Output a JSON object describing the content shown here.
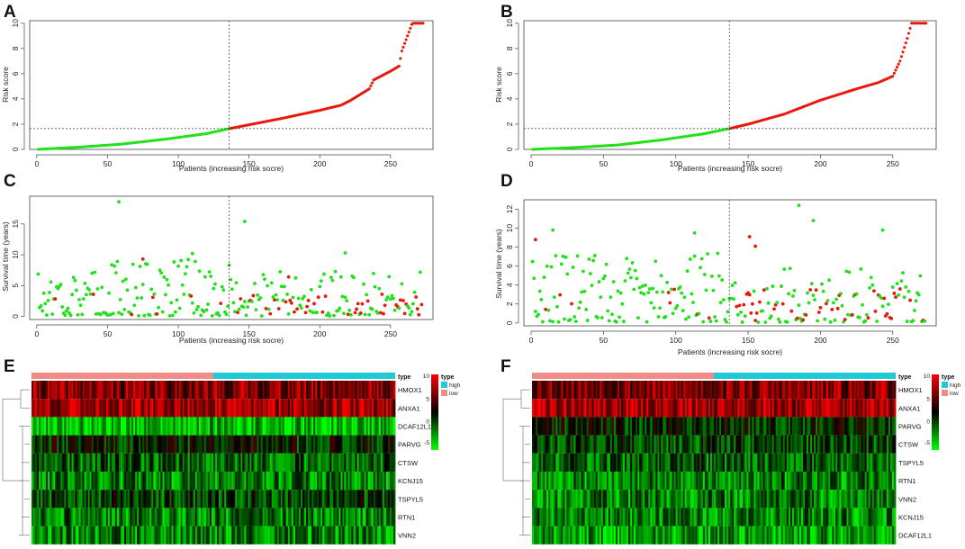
{
  "panels": {
    "A": {
      "letter": "A",
      "type": "scatter",
      "n": 273,
      "cutoff": 136,
      "cutoff_y": 1.65,
      "max_y": 10,
      "xticks": [
        0,
        50,
        100,
        150,
        200,
        250
      ],
      "yticks": [
        0,
        2,
        4,
        6,
        8,
        10
      ],
      "xlabel": "Patients (increasing risk socre)",
      "ylabel": "Risk score",
      "ylim": [
        0,
        10.2
      ],
      "xlim": [
        -5,
        280
      ],
      "curve_knots": [
        [
          0,
          0.0
        ],
        [
          30,
          0.18
        ],
        [
          60,
          0.42
        ],
        [
          90,
          0.8
        ],
        [
          120,
          1.25
        ],
        [
          136,
          1.65
        ],
        [
          150,
          1.95
        ],
        [
          175,
          2.5
        ],
        [
          200,
          3.1
        ],
        [
          215,
          3.5
        ],
        [
          222,
          3.9
        ],
        [
          235,
          4.8
        ],
        [
          238,
          5.5
        ],
        [
          250,
          6.2
        ],
        [
          256,
          6.6
        ],
        [
          258,
          7.8
        ],
        [
          262,
          9.0
        ],
        [
          265,
          9.9
        ],
        [
          266,
          10
        ],
        [
          273,
          10
        ]
      ]
    },
    "B": {
      "letter": "B",
      "type": "scatter",
      "n": 273,
      "cutoff": 137,
      "cutoff_y": 1.65,
      "max_y": 10,
      "xticks": [
        0,
        50,
        100,
        150,
        200,
        250
      ],
      "yticks": [
        0,
        2,
        4,
        6,
        8,
        10
      ],
      "xlabel": "Patients (increasing risk socre)",
      "ylabel": "Risk score",
      "ylim": [
        0,
        10.2
      ],
      "xlim": [
        -5,
        280
      ],
      "curve_knots": [
        [
          0,
          0.0
        ],
        [
          30,
          0.15
        ],
        [
          60,
          0.35
        ],
        [
          90,
          0.75
        ],
        [
          120,
          1.25
        ],
        [
          137,
          1.65
        ],
        [
          150,
          2.0
        ],
        [
          175,
          2.8
        ],
        [
          200,
          3.9
        ],
        [
          225,
          4.8
        ],
        [
          240,
          5.3
        ],
        [
          250,
          5.8
        ],
        [
          255,
          7.0
        ],
        [
          260,
          8.8
        ],
        [
          263,
          10
        ],
        [
          273,
          10
        ]
      ]
    },
    "C": {
      "letter": "C",
      "type": "scatter",
      "cutoff": 136,
      "seed": 17,
      "xticks": [
        0,
        50,
        100,
        150,
        200,
        250
      ],
      "yticks": [
        0,
        5,
        10,
        15
      ],
      "xlabel": "Patients (increasing risk socre)",
      "ylabel": "Survival time (years)",
      "ylim": [
        -0.5,
        19.5
      ],
      "xlim": [
        -5,
        280
      ]
    },
    "D": {
      "letter": "D",
      "type": "scatter",
      "cutoff": 137,
      "seed": 29,
      "xticks": [
        0,
        50,
        100,
        150,
        200,
        250
      ],
      "yticks": [
        0,
        2,
        4,
        6,
        8,
        10,
        12
      ],
      "xlabel": "Patients (increasing risk socre)",
      "ylabel": "Survival time (years)",
      "ylim": [
        -0.3,
        13
      ],
      "xlim": [
        -5,
        280
      ]
    },
    "E": {
      "letter": "E",
      "type": "heatmap",
      "seed": 41,
      "genes": [
        "HMOX1",
        "ANXA1",
        "DCAF12L1",
        "PARVG",
        "CTSW",
        "KCNJ15",
        "TSPYL5",
        "RTN1",
        "VNN2"
      ],
      "gene_bias": [
        4,
        5,
        -6,
        -1,
        -3,
        -4,
        -2,
        -4,
        -4
      ]
    },
    "F": {
      "letter": "F",
      "type": "heatmap",
      "seed": 53,
      "genes": [
        "HMOX1",
        "ANXA1",
        "PARVG",
        "CTSW",
        "TSPYL5",
        "RTN1",
        "VNN2",
        "KCNJ15",
        "DCAF12L1"
      ],
      "gene_bias": [
        4,
        5,
        -1,
        -2,
        -3,
        -4,
        -4,
        -4,
        -5
      ]
    }
  },
  "heatmap_legend": {
    "ticks": [
      "10",
      "5",
      "0",
      "-5"
    ],
    "title": "type",
    "items": [
      "high",
      "low"
    ],
    "type_label": "type",
    "high_color": "#1fcad6",
    "low_color": "#f08c88"
  },
  "colors": {
    "high": "#e8190c",
    "low": "#22e01a",
    "heat_high": "#ff0000",
    "heat_low": "#00ff00",
    "heat_mid": "#000000"
  }
}
